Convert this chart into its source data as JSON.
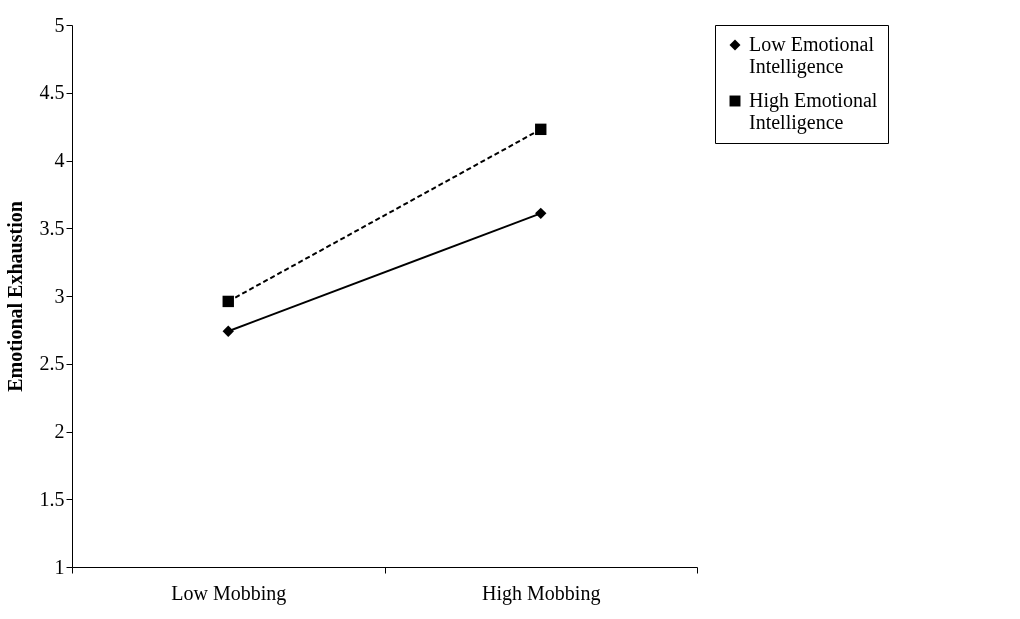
{
  "chart_data": {
    "type": "line",
    "ylabel": "Emotional Exhaustion",
    "categories": [
      "Low Mobbing",
      "High Mobbing"
    ],
    "ylim": [
      1,
      5
    ],
    "yticks": [
      1,
      1.5,
      2,
      2.5,
      3,
      3.5,
      4,
      4.5,
      5
    ],
    "grid": false,
    "legend": "right",
    "series": [
      {
        "name": "Low Emotional Intelligence",
        "color": "#000000",
        "values": [
          2.74,
          3.61
        ],
        "marker": "diamond",
        "line_style": "solid"
      },
      {
        "name": "High Emotional Intelligence",
        "color": "#000000",
        "values": [
          2.96,
          4.23
        ],
        "marker": "square",
        "line_style": "dashed"
      }
    ]
  }
}
